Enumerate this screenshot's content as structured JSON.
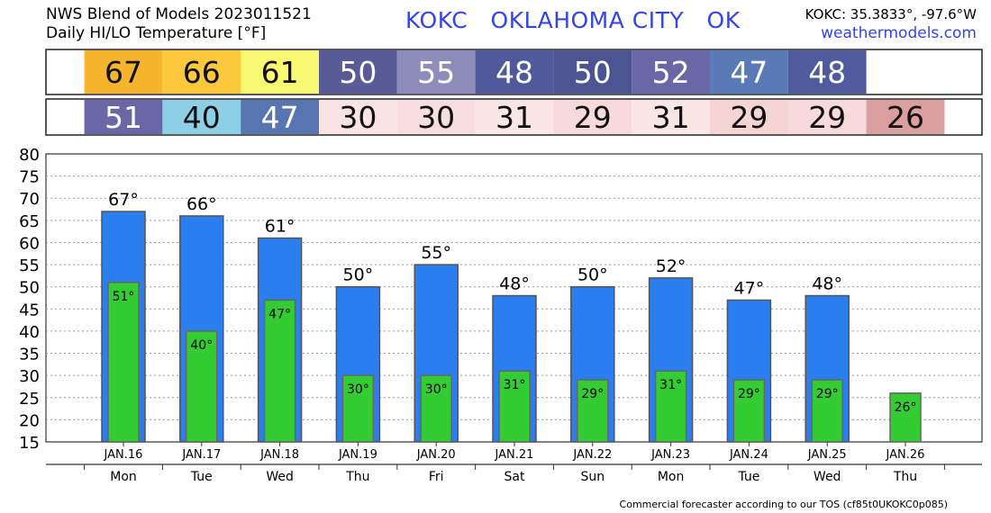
{
  "header": {
    "title_line1": "NWS Blend of Models 2023011521",
    "title_line2": "Daily HI/LO Temperature [°F]",
    "station": "KOKC   OKLAHOMA CITY   OK",
    "coords": "KOKC: 35.3833°, -97.6°W",
    "site": "weathermodels.com"
  },
  "footer": "Commercial forecaster according to our TOS (cf85t0UKOKC0p085)",
  "colors": {
    "hi_bar": "#2a7ef0",
    "lo_bar": "#33cc33",
    "hi_cells": [
      "#f7b52e",
      "#fbc93b",
      "#f9f871",
      "#595b96",
      "#8e8db9",
      "#505a9b",
      "#4c5591",
      "#6a67a6",
      "#5a7ab7",
      "#4f5b9d"
    ],
    "lo_cells": [
      "#6a67a6",
      "#8dcfe6",
      "#5775b1",
      "#fae3e3",
      "#f9dede",
      "#fbe6e6",
      "#f9dada",
      "#fbe6e6",
      "#f6d4d4",
      "#f8dada",
      "#dc9f9f"
    ]
  },
  "chart_data": {
    "type": "bar",
    "categories": [
      "JAN.16",
      "JAN.17",
      "JAN.18",
      "JAN.19",
      "JAN.20",
      "JAN.21",
      "JAN.22",
      "JAN.23",
      "JAN.24",
      "JAN.25",
      "JAN.26"
    ],
    "weekdays": [
      "Mon",
      "Tue",
      "Wed",
      "Thu",
      "Fri",
      "Sat",
      "Sun",
      "Mon",
      "Tue",
      "Wed",
      "Thu"
    ],
    "series": [
      {
        "values": [
          67,
          66,
          61,
          50,
          55,
          48,
          50,
          52,
          47,
          48,
          null
        ]
      },
      {
        "values": [
          51,
          40,
          47,
          30,
          30,
          31,
          29,
          31,
          29,
          29,
          26
        ]
      }
    ],
    "ylim": [
      15,
      80
    ],
    "yticks": [
      15,
      20,
      25,
      30,
      35,
      40,
      45,
      50,
      55,
      60,
      65,
      70,
      75,
      80
    ],
    "grid": true
  }
}
